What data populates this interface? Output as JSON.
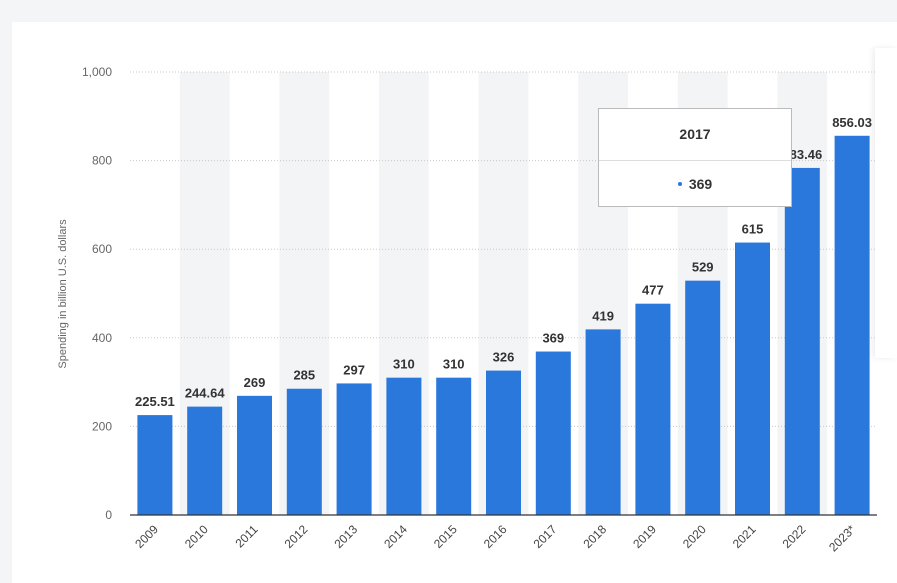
{
  "chart_data": {
    "type": "bar",
    "categories": [
      "2009",
      "2010",
      "2011",
      "2012",
      "2013",
      "2014",
      "2015",
      "2016",
      "2017",
      "2018",
      "2019",
      "2020",
      "2021",
      "2022",
      "2023*"
    ],
    "values": [
      225.51,
      244.64,
      269,
      285,
      297,
      310,
      310,
      326,
      369,
      419,
      477,
      529,
      615,
      783.46,
      856.03
    ],
    "data_labels": [
      "225.51",
      "244.64",
      "269",
      "285",
      "297",
      "310",
      "310",
      "326",
      "369",
      "419",
      "477",
      "529",
      "615",
      "783.46",
      "856.03"
    ],
    "title": "",
    "xlabel": "",
    "ylabel": "Spending in billion U.S. dollars",
    "ylim": [
      0,
      1000
    ],
    "yticks": [
      0,
      200,
      400,
      600,
      800,
      1000
    ],
    "ytick_labels": [
      "0",
      "200",
      "400",
      "600",
      "800",
      "1,000"
    ],
    "grid": true,
    "legend": "none",
    "bar_color": "#2a78dc",
    "band_color": "#f3f4f6"
  },
  "tooltip": {
    "category": "2017",
    "value": "369"
  }
}
